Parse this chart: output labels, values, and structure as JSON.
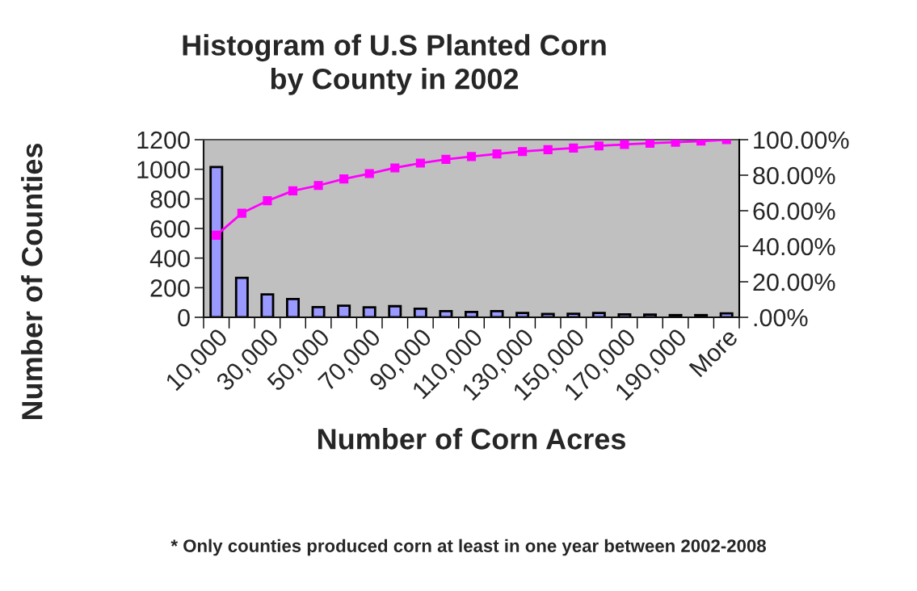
{
  "chart_data": {
    "type": "bar",
    "title": "Histogram of U.S Planted Corn\nby County in 2002",
    "xlabel": "Number of Corn Acres",
    "ylabel": "Number of Counties",
    "categories": [
      "10,000",
      null,
      "30,000",
      null,
      "50,000",
      null,
      "70,000",
      null,
      "90,000",
      null,
      "110,000",
      null,
      "130,000",
      null,
      "150,000",
      null,
      "170,000",
      null,
      "190,000",
      null,
      "More"
    ],
    "series": [
      {
        "color": "#9999ff",
        "values": [
          1015,
          267,
          155,
          124,
          69,
          78,
          67,
          75,
          58,
          42,
          36,
          42,
          29,
          22,
          24,
          29,
          20,
          18,
          15,
          15,
          27
        ]
      },
      {
        "type": "line",
        "axis": "y2",
        "color": "#ff00ff",
        "marker": "square",
        "values": [
          46.2,
          58.6,
          65.6,
          71.2,
          74.2,
          77.9,
          80.9,
          84.1,
          86.8,
          88.9,
          90.5,
          92.0,
          93.3,
          94.4,
          95.3,
          96.5,
          97.3,
          98.0,
          98.6,
          99.2,
          100
        ]
      }
    ],
    "ylim": [
      0,
      1200
    ],
    "yticks": [
      0,
      200,
      400,
      600,
      800,
      1000,
      1200
    ],
    "y2lim": [
      0,
      100
    ],
    "y2ticks": [
      {
        "value": 0,
        "label": ".00%"
      },
      {
        "value": 20,
        "label": "20.00%"
      },
      {
        "value": 40,
        "label": "40.00%"
      },
      {
        "value": 60,
        "label": "60.00%"
      },
      {
        "value": 80,
        "label": "80.00%"
      },
      {
        "value": 100,
        "label": "100.00%"
      }
    ],
    "grid": false,
    "annotations": [
      "* Only counties produced corn at least in one year between 2002-2008"
    ]
  }
}
